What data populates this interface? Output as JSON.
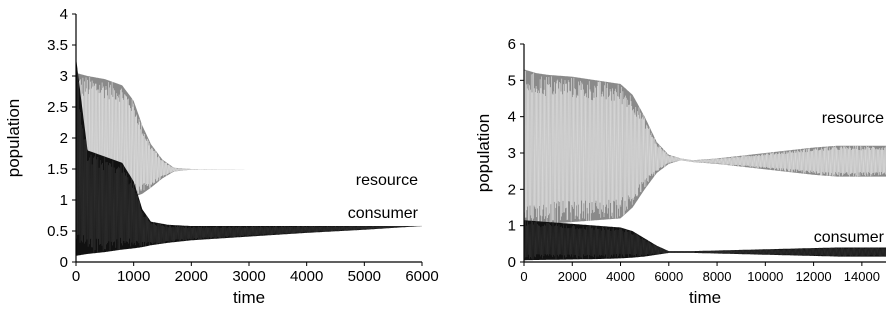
{
  "chart_data": [
    {
      "type": "line",
      "title": "",
      "xlabel": "time",
      "ylabel": "population",
      "xlim": [
        0,
        6000
      ],
      "ylim": [
        0,
        4
      ],
      "xticks": [
        "0",
        "1000",
        "2000",
        "3000",
        "4000",
        "5000",
        "6000"
      ],
      "yticks": [
        "0",
        "0.5",
        "1",
        "1.5",
        "2",
        "2.5",
        "3",
        "3.5",
        "4"
      ],
      "grid": false,
      "annotations": [
        "resource",
        "consumer"
      ],
      "series": [
        {
          "label": "resource",
          "band_t": [
            0,
            200,
            500,
            800,
            1000,
            1150,
            1300,
            1500,
            1700,
            2000,
            3000,
            6000
          ],
          "upper": [
            3.05,
            3.0,
            2.95,
            2.85,
            2.6,
            2.2,
            1.9,
            1.65,
            1.52,
            1.5,
            1.5,
            1.5
          ],
          "lower": [
            0.1,
            0.7,
            0.85,
            1.0,
            1.05,
            1.1,
            1.2,
            1.35,
            1.46,
            1.49,
            1.5,
            1.5
          ]
        },
        {
          "label": "consumer",
          "band_t": [
            0,
            200,
            500,
            800,
            1000,
            1150,
            1300,
            1600,
            2000,
            3000,
            4000,
            5000,
            6000
          ],
          "upper": [
            3.3,
            1.8,
            1.7,
            1.6,
            1.3,
            0.85,
            0.65,
            0.6,
            0.58,
            0.58,
            0.58,
            0.58,
            0.58
          ],
          "lower": [
            0.1,
            0.13,
            0.16,
            0.2,
            0.22,
            0.24,
            0.27,
            0.31,
            0.35,
            0.41,
            0.47,
            0.52,
            0.58
          ]
        }
      ]
    },
    {
      "type": "line",
      "title": "",
      "xlabel": "time",
      "ylabel": "population",
      "xlim": [
        0,
        15000
      ],
      "ylim": [
        0,
        6
      ],
      "xticks": [
        "0",
        "2000",
        "4000",
        "6000",
        "8000",
        "10000",
        "12000",
        "14000"
      ],
      "yticks": [
        "0",
        "1",
        "2",
        "3",
        "4",
        "5",
        "6"
      ],
      "grid": false,
      "annotations": [
        "resource",
        "consumer"
      ],
      "series": [
        {
          "label": "resource",
          "band_t": [
            0,
            500,
            1000,
            2000,
            3000,
            4000,
            4500,
            5000,
            5500,
            6000,
            6500,
            7000,
            8000,
            10000,
            12000,
            13000,
            15000
          ],
          "upper": [
            5.3,
            5.2,
            5.15,
            5.1,
            5.0,
            4.9,
            4.6,
            4.0,
            3.3,
            2.95,
            2.85,
            2.8,
            2.85,
            3.0,
            3.15,
            3.2,
            3.2
          ],
          "lower": [
            1.0,
            1.0,
            1.05,
            1.1,
            1.15,
            1.2,
            1.5,
            2.0,
            2.45,
            2.7,
            2.8,
            2.75,
            2.7,
            2.55,
            2.4,
            2.35,
            2.35
          ]
        },
        {
          "label": "consumer",
          "band_t": [
            0,
            1000,
            2000,
            3000,
            4000,
            4500,
            5000,
            5500,
            6000,
            7000,
            10000,
            13000,
            15000
          ],
          "upper": [
            1.15,
            1.1,
            1.05,
            1.0,
            0.95,
            0.85,
            0.65,
            0.45,
            0.3,
            0.3,
            0.35,
            0.4,
            0.4
          ],
          "lower": [
            0.05,
            0.06,
            0.07,
            0.08,
            0.1,
            0.12,
            0.15,
            0.2,
            0.25,
            0.25,
            0.2,
            0.15,
            0.15
          ]
        }
      ]
    }
  ]
}
